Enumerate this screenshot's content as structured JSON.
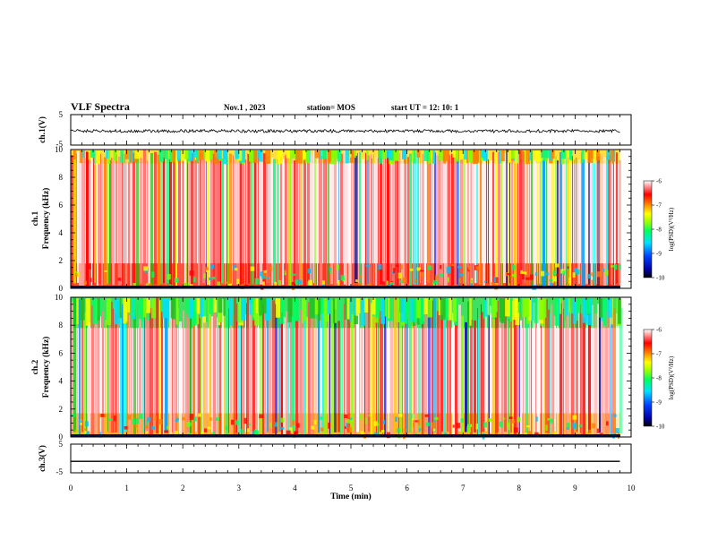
{
  "header": {
    "title": "VLF Spectra",
    "date": "Nov.1  , 2023",
    "station": "station= MOS",
    "start": "start  UT =   12: 10: 1"
  },
  "chart_data": [
    {
      "type": "line",
      "name": "ch1-waveform",
      "ylabel": "ch.1(V)",
      "ylim": [
        -5,
        5
      ],
      "yticks": [
        "5",
        "-5"
      ],
      "x": [
        0,
        9.8
      ],
      "y": [
        -0.4,
        -0.4
      ],
      "note_values": "noisy trace near -0.4 V"
    },
    {
      "type": "heatmap",
      "name": "ch1-spectrogram",
      "ylabel": "ch.1",
      "ylabel2": "Frequency (kHz)",
      "ylim": [
        0,
        10
      ],
      "yticks": [
        "0",
        "2",
        "4",
        "6",
        "8",
        "10"
      ],
      "xlim": [
        0,
        10
      ],
      "data_xmax": 9.8,
      "colorbar": {
        "label": "log(PSD)(V²/Hz)",
        "range": [
          -10,
          -6
        ],
        "ticks": [
          "-6",
          "-7",
          "-8",
          "-9",
          "-10"
        ]
      }
    },
    {
      "type": "heatmap",
      "name": "ch2-spectrogram",
      "ylabel": "ch.2",
      "ylabel2": "Frequency (kHz)",
      "ylim": [
        0,
        10
      ],
      "yticks": [
        "0",
        "2",
        "4",
        "6",
        "8",
        "10"
      ],
      "xlim": [
        0,
        10
      ],
      "data_xmax": 9.8,
      "colorbar": {
        "label": "log(PSD)(V²/Hz)",
        "range": [
          -10,
          -6
        ],
        "ticks": [
          "-6",
          "-7",
          "-8",
          "-9",
          "-10"
        ]
      }
    },
    {
      "type": "line",
      "name": "ch3-waveform",
      "ylabel": "ch.3(V)",
      "ylim": [
        -5,
        5
      ],
      "yticks": [
        "5",
        "-5"
      ],
      "x": [
        0,
        9.8
      ],
      "y": [
        -1,
        -1
      ]
    }
  ],
  "xaxis": {
    "label": "Time  (min)",
    "ticks": [
      "0",
      "1",
      "2",
      "3",
      "4",
      "5",
      "6",
      "7",
      "8",
      "9",
      "10"
    ]
  },
  "colors": {
    "axis": "#000000",
    "cmap": [
      "#000080",
      "#0000ff",
      "#00a0ff",
      "#00ffff",
      "#00ff80",
      "#80ff00",
      "#ffff00",
      "#ff8000",
      "#ff0000",
      "#ff8080",
      "#ffffff"
    ]
  }
}
